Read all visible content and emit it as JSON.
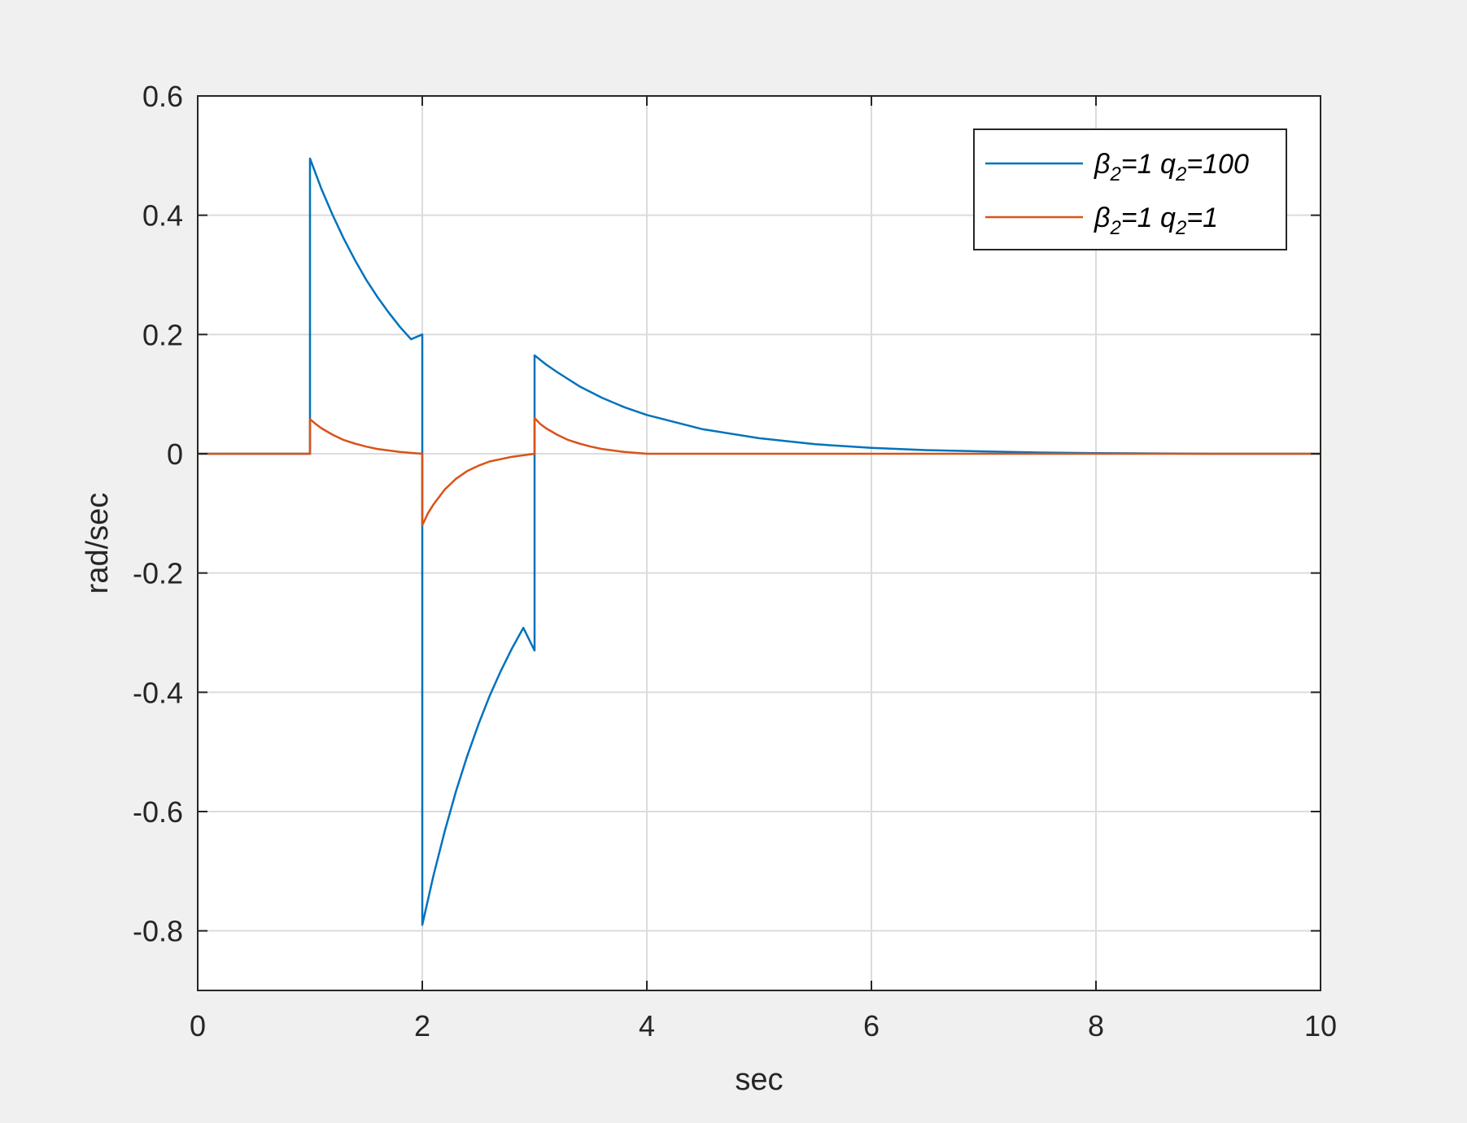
{
  "figure": {
    "background": "#f0f0f0",
    "axes_background": "#ffffff"
  },
  "chart_data": {
    "type": "line",
    "xlabel": "sec",
    "ylabel": "rad/sec",
    "xlim": [
      0,
      10
    ],
    "ylim": [
      -0.9,
      0.6
    ],
    "xticks": [
      0,
      2,
      4,
      6,
      8,
      10
    ],
    "yticks": [
      -0.8,
      -0.6,
      -0.4,
      -0.2,
      0,
      0.2,
      0.4,
      0.6
    ],
    "xtick_labels": [
      "0",
      "2",
      "4",
      "6",
      "8",
      "10"
    ],
    "ytick_labels": [
      "-0.8",
      "-0.6",
      "-0.4",
      "-0.2",
      "0",
      "0.2",
      "0.4",
      "0.6"
    ],
    "grid": true,
    "legend_position": "top-right",
    "series": [
      {
        "label_parts": [
          {
            "text": "β",
            "sub": "2",
            "rest": "=1 "
          },
          {
            "text": "q",
            "sub": "2",
            "rest": "=100"
          }
        ],
        "color": "#0072bd",
        "x": [
          0,
          1,
          1,
          1.1,
          1.2,
          1.3,
          1.4,
          1.5,
          1.6,
          1.7,
          1.8,
          1.9,
          2,
          2,
          2.1,
          2.2,
          2.3,
          2.4,
          2.5,
          2.6,
          2.7,
          2.8,
          2.9,
          3,
          3,
          3.1,
          3.2,
          3.4,
          3.6,
          3.8,
          4,
          4.5,
          5,
          5.5,
          6,
          6.5,
          7,
          7.5,
          8,
          9,
          10
        ],
        "y": [
          0,
          0,
          0.495,
          0.445,
          0.401,
          0.361,
          0.325,
          0.292,
          0.263,
          0.237,
          0.213,
          0.192,
          0.2,
          -0.79,
          -0.707,
          -0.633,
          -0.566,
          -0.507,
          -0.454,
          -0.406,
          -0.364,
          -0.326,
          -0.292,
          -0.33,
          0.165,
          0.15,
          0.137,
          0.113,
          0.094,
          0.078,
          0.065,
          0.041,
          0.026,
          0.016,
          0.01,
          0.006,
          0.004,
          0.002,
          0.001,
          0,
          0
        ]
      },
      {
        "label_parts": [
          {
            "text": "β",
            "sub": "2",
            "rest": "=1 "
          },
          {
            "text": "q",
            "sub": "2",
            "rest": "=1"
          }
        ],
        "color": "#d95319",
        "x": [
          0,
          1,
          1,
          1.05,
          1.1,
          1.2,
          1.3,
          1.4,
          1.5,
          1.6,
          1.8,
          2,
          2,
          2.05,
          2.1,
          2.2,
          2.3,
          2.4,
          2.5,
          2.6,
          2.8,
          3,
          3,
          3.05,
          3.1,
          3.2,
          3.3,
          3.4,
          3.5,
          3.6,
          3.8,
          4,
          10
        ],
        "y": [
          0,
          0,
          0.058,
          0.05,
          0.043,
          0.032,
          0.023,
          0.017,
          0.012,
          0.008,
          0.003,
          0,
          -0.12,
          -0.1,
          -0.085,
          -0.06,
          -0.042,
          -0.029,
          -0.02,
          -0.013,
          -0.005,
          0,
          0.06,
          0.05,
          0.043,
          0.032,
          0.023,
          0.017,
          0.012,
          0.008,
          0.003,
          0,
          0
        ]
      }
    ]
  }
}
